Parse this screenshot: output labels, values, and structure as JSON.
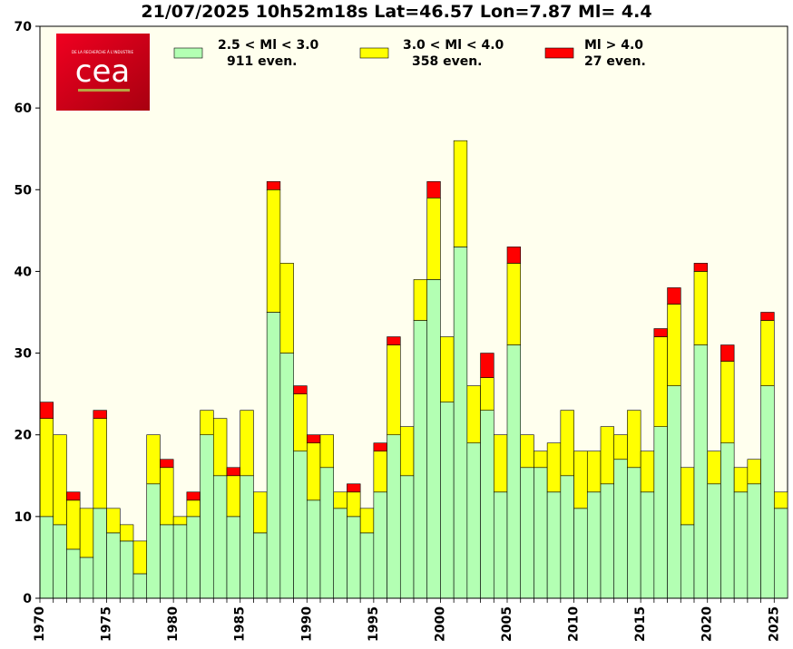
{
  "chart_data": {
    "type": "bar",
    "stacked": true,
    "title": "21/07/2025 10h52m18s Lat=46.57 Lon=7.87 Ml= 4.4",
    "xlabel": "",
    "ylabel": "",
    "ylim": [
      0,
      70
    ],
    "yticks": [
      0,
      10,
      20,
      30,
      40,
      50,
      60,
      70
    ],
    "xtick_years": [
      "1970",
      "1975",
      "1980",
      "1985",
      "1990",
      "1995",
      "2000",
      "2005",
      "2010",
      "2015",
      "2020",
      "2025"
    ],
    "years": [
      1970,
      1971,
      1972,
      1973,
      1974,
      1975,
      1976,
      1977,
      1978,
      1979,
      1980,
      1981,
      1982,
      1983,
      1984,
      1985,
      1986,
      1987,
      1988,
      1989,
      1990,
      1991,
      1992,
      1993,
      1994,
      1995,
      1996,
      1997,
      1998,
      1999,
      2000,
      2001,
      2002,
      2003,
      2004,
      2005,
      2006,
      2007,
      2008,
      2009,
      2010,
      2011,
      2012,
      2013,
      2014,
      2015,
      2016,
      2017,
      2018,
      2019,
      2020,
      2021,
      2022,
      2023,
      2024,
      2025
    ],
    "series": [
      {
        "name": "2.5 < Ml <  3.0",
        "count_label": "911 even.",
        "color": "#b3ffb3",
        "values": [
          10,
          9,
          6,
          5,
          11,
          8,
          7,
          3,
          14,
          9,
          9,
          10,
          20,
          15,
          10,
          15,
          8,
          35,
          30,
          18,
          12,
          16,
          11,
          10,
          8,
          13,
          20,
          15,
          34,
          39,
          24,
          43,
          19,
          23,
          13,
          31,
          16,
          16,
          13,
          15,
          11,
          13,
          14,
          17,
          16,
          13,
          21,
          26,
          9,
          31,
          14,
          19,
          13,
          14,
          26,
          11
        ]
      },
      {
        "name": "3.0 < Ml <  4.0",
        "count_label": "358 even.",
        "color": "#ffff00",
        "values": [
          12,
          11,
          6,
          6,
          11,
          3,
          2,
          4,
          6,
          7,
          1,
          2,
          3,
          7,
          5,
          8,
          5,
          15,
          11,
          7,
          7,
          4,
          2,
          3,
          3,
          5,
          11,
          6,
          5,
          10,
          8,
          13,
          7,
          4,
          7,
          10,
          4,
          2,
          6,
          8,
          7,
          5,
          7,
          3,
          7,
          5,
          11,
          10,
          7,
          9,
          4,
          10,
          3,
          3,
          8,
          2
        ]
      },
      {
        "name": "Ml >  4.0",
        "count_label": "27 even.",
        "color": "#ff0000",
        "values": [
          2,
          0,
          1,
          0,
          1,
          0,
          0,
          0,
          0,
          1,
          0,
          1,
          0,
          0,
          1,
          0,
          0,
          1,
          0,
          1,
          1,
          0,
          0,
          1,
          0,
          1,
          1,
          0,
          0,
          2,
          0,
          0,
          0,
          3,
          0,
          2,
          0,
          0,
          0,
          0,
          0,
          0,
          0,
          0,
          0,
          0,
          1,
          2,
          0,
          1,
          0,
          2,
          0,
          0,
          1,
          0
        ]
      }
    ],
    "background": "#ffffee",
    "grid": false,
    "legend_position": "top"
  },
  "logo": {
    "text": "cea",
    "tagline": "DE LA RECHERCHE À L'INDUSTRIE",
    "color": "#e2001a"
  }
}
